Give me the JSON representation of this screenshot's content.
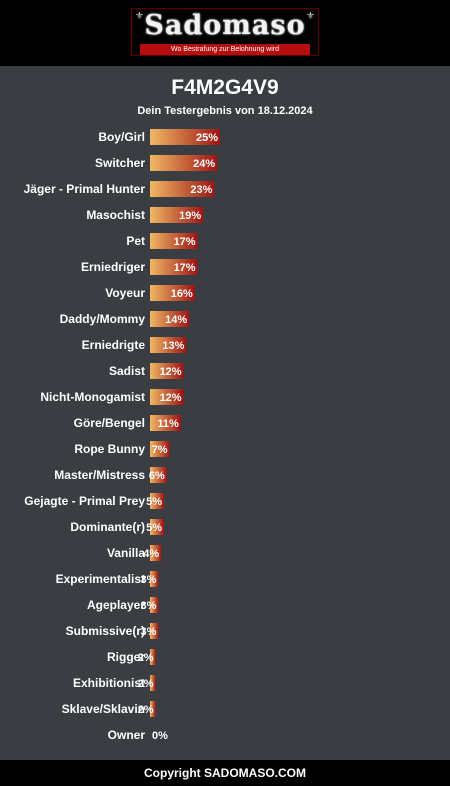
{
  "header": {
    "logo_text": "Sadomaso",
    "logo_tagline": "Wo Bestrafung zur Belohnung wird"
  },
  "title": "F4M2G4V9",
  "subtitle": "Dein Testergebnis von 18.12.2024",
  "footer": "Copyright SADOMASO.COM",
  "colors": {
    "background": "#3a3d42",
    "bar_start": "#f0b865",
    "bar_end": "#9e1414",
    "header": "#000000"
  },
  "chart_data": {
    "type": "bar",
    "orientation": "horizontal",
    "value_suffix": "%",
    "categories": [
      "Boy/Girl",
      "Switcher",
      "Jäger - Primal Hunter",
      "Masochist",
      "Pet",
      "Erniedriger",
      "Voyeur",
      "Daddy/Mommy",
      "Erniedrigte",
      "Sadist",
      "Nicht-Monogamist",
      "Göre/Bengel",
      "Rope Bunny",
      "Master/Mistress",
      "Gejagte - Primal Prey",
      "Dominante(r)",
      "Vanilla",
      "Experimentalist",
      "Ageplayer",
      "Submissive(r)",
      "Rigger",
      "Exhibitionist",
      "Sklave/Sklavin",
      "Owner"
    ],
    "values": [
      25,
      24,
      23,
      19,
      17,
      17,
      16,
      14,
      13,
      12,
      12,
      11,
      7,
      6,
      5,
      5,
      4,
      3,
      3,
      3,
      2,
      2,
      2,
      0
    ]
  }
}
